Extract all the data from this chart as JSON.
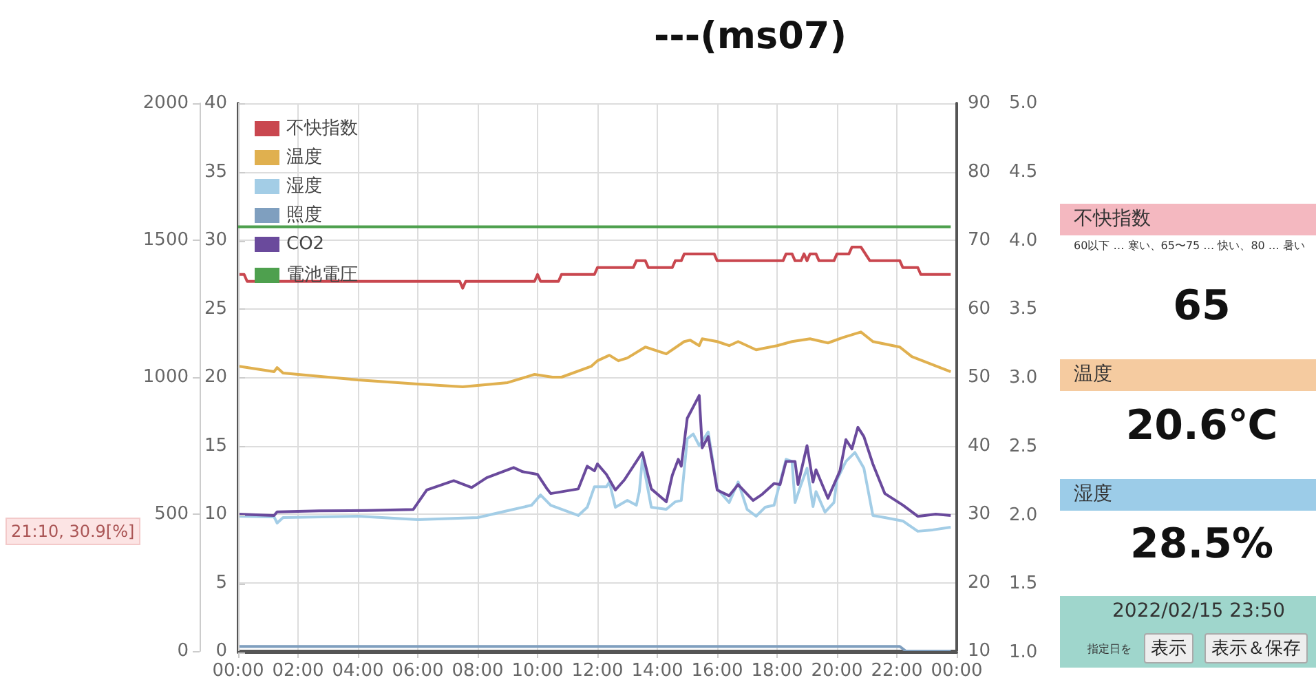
{
  "chart_data": [
    {
      "type": "line",
      "title": "---(ms07)",
      "xlim": [
        0,
        24
      ],
      "xticks": [
        {
          "value": 0,
          "label": "00:00"
        },
        {
          "value": 2,
          "label": "02:00"
        },
        {
          "value": 4,
          "label": "04:00"
        },
        {
          "value": 6,
          "label": "06:00"
        },
        {
          "value": 8,
          "label": "08:00"
        },
        {
          "value": 10,
          "label": "10:00"
        },
        {
          "value": 12,
          "label": "12:00"
        },
        {
          "value": 14,
          "label": "14:00"
        },
        {
          "value": 16,
          "label": "16:00"
        },
        {
          "value": 18,
          "label": "18:00"
        },
        {
          "value": 20,
          "label": "20:00"
        },
        {
          "value": 22,
          "label": "22:00"
        },
        {
          "value": 24,
          "label": "00:00"
        }
      ],
      "ylim": [
        0,
        40
      ],
      "yticks": [
        0,
        5,
        10,
        15,
        20,
        25,
        30,
        35,
        40
      ],
      "y2lim": [
        10,
        90
      ],
      "y2ticks": [
        10,
        20,
        30,
        40,
        50,
        60,
        70,
        80,
        90
      ],
      "y3lim": [
        0,
        2000
      ],
      "y3ticks": [
        0,
        500,
        1000,
        1500,
        2000
      ],
      "grid": true,
      "legend": "top left",
      "marker": "none",
      "line_style": "solid",
      "series": [
        {
          "name": "不快指数",
          "color": "#c9474f",
          "axis": "y2",
          "x": [
            0,
            0.2,
            0.3,
            7.4,
            7.5,
            7.6,
            9.9,
            10.0,
            10.1,
            10.7,
            10.8,
            11.9,
            12.0,
            13.2,
            13.3,
            13.6,
            13.7,
            14.5,
            14.6,
            14.8,
            14.9,
            15.9,
            16.0,
            18.2,
            18.3,
            18.5,
            18.6,
            18.8,
            18.9,
            19.0,
            19.1,
            19.3,
            19.4,
            19.9,
            20.0,
            20.4,
            20.5,
            20.8,
            21.1,
            22.1,
            22.2,
            22.7,
            22.8,
            23.8
          ],
          "values": [
            65,
            65,
            64,
            64,
            63,
            64,
            64,
            65,
            64,
            64,
            65,
            65,
            66,
            66,
            67,
            67,
            66,
            66,
            67,
            67,
            68,
            68,
            67,
            67,
            68,
            68,
            67,
            67,
            68,
            67,
            68,
            68,
            67,
            67,
            68,
            68,
            69,
            69,
            67,
            67,
            66,
            66,
            65,
            65
          ]
        },
        {
          "name": "温度",
          "color": "#e0b04f",
          "axis": "y",
          "x": [
            0,
            1.2,
            1.3,
            1.5,
            4.0,
            6.0,
            7.5,
            9.0,
            9.9,
            10.5,
            10.8,
            11.8,
            12.0,
            12.4,
            12.7,
            13.0,
            13.6,
            14.3,
            14.9,
            15.1,
            15.4,
            15.5,
            16.0,
            16.4,
            16.7,
            17.3,
            18.0,
            18.5,
            19.1,
            19.7,
            20.2,
            20.8,
            21.2,
            22.1,
            22.5,
            23.8
          ],
          "values": [
            20.8,
            20.4,
            20.7,
            20.3,
            19.8,
            19.5,
            19.3,
            19.6,
            20.2,
            20.0,
            20.0,
            20.8,
            21.2,
            21.6,
            21.2,
            21.4,
            22.2,
            21.7,
            22.6,
            22.7,
            22.3,
            22.8,
            22.6,
            22.3,
            22.6,
            22.0,
            22.3,
            22.6,
            22.8,
            22.5,
            22.9,
            23.3,
            22.6,
            22.2,
            21.5,
            20.4
          ]
        },
        {
          "name": "湿度",
          "color": "#a3cde6",
          "axis": "y2",
          "x": [
            0,
            1.2,
            1.3,
            1.5,
            4.0,
            6.0,
            8.0,
            9.0,
            9.8,
            10.1,
            10.44,
            11.36,
            11.66,
            11.9,
            12.3,
            12.4,
            12.6,
            13.0,
            13.3,
            13.4,
            13.5,
            13.8,
            14.3,
            14.6,
            14.8,
            15.0,
            15.2,
            15.4,
            15.7,
            16.0,
            16.4,
            16.7,
            17.0,
            17.3,
            17.6,
            17.9,
            18.3,
            18.5,
            18.6,
            18.8,
            19.0,
            19.2,
            19.3,
            19.6,
            19.9,
            20.0,
            20.3,
            20.6,
            20.9,
            21.2,
            21.6,
            22.2,
            22.7,
            23.2,
            23.8
          ],
          "values": [
            29.7,
            29.6,
            28.7,
            29.5,
            29.7,
            29.2,
            29.5,
            30.5,
            31.3,
            32.8,
            31.3,
            29.8,
            31.0,
            34.0,
            34.0,
            34.7,
            31.0,
            32.0,
            31.3,
            33.3,
            38.0,
            31.0,
            30.7,
            31.8,
            32.0,
            41.0,
            41.7,
            40.0,
            42.0,
            33.7,
            31.7,
            34.7,
            30.7,
            29.7,
            31.0,
            31.3,
            38.0,
            37.7,
            31.7,
            34.3,
            36.7,
            31.1,
            33.3,
            30.3,
            31.7,
            35.0,
            37.7,
            39.0,
            36.7,
            29.8,
            29.5,
            29.0,
            27.5,
            27.7,
            28.1
          ]
        },
        {
          "name": "照度",
          "color": "#7f9fbf",
          "axis": "y3",
          "x": [
            0,
            12,
            22.1,
            22.3,
            23.8
          ],
          "values": [
            17,
            17,
            17,
            0,
            0
          ]
        },
        {
          "name": "CO2",
          "color": "#6a4a9c",
          "axis": "y3",
          "x": [
            0,
            1.2,
            1.3,
            2.7,
            4.3,
            5.85,
            6.3,
            7.2,
            7.8,
            8.3,
            9.2,
            9.5,
            10.0,
            10.3,
            10.44,
            11.36,
            11.66,
            11.9,
            12.0,
            12.3,
            12.6,
            12.9,
            13.5,
            13.8,
            14.3,
            14.5,
            14.7,
            14.8,
            15.0,
            15.4,
            15.5,
            15.7,
            16.0,
            16.4,
            16.7,
            17.2,
            17.5,
            17.9,
            18.1,
            18.3,
            18.6,
            18.7,
            19.0,
            19.2,
            19.3,
            19.7,
            20.1,
            20.3,
            20.5,
            20.7,
            20.9,
            21.2,
            21.6,
            22.2,
            22.7,
            23.3,
            23.8
          ],
          "values": [
            500,
            495,
            508,
            512,
            513,
            517,
            588,
            622,
            597,
            633,
            670,
            655,
            645,
            595,
            575,
            592,
            675,
            658,
            683,
            645,
            588,
            625,
            725,
            592,
            545,
            642,
            700,
            675,
            850,
            933,
            742,
            783,
            588,
            567,
            608,
            550,
            572,
            612,
            608,
            692,
            692,
            608,
            750,
            617,
            662,
            558,
            658,
            772,
            738,
            817,
            783,
            683,
            575,
            533,
            492,
            500,
            495
          ]
        }
      ],
      "annotations": [
        "21:10, 30.9[%]",
        "不快指数",
        "60以下 … 寒い、65〜75 … 快い、80 … 暑い",
        "65",
        "温度",
        "20.6℃",
        "湿度",
        "28.5%",
        "2022/02/15 23:50",
        "指定日を",
        "表示",
        "表示＆保存"
      ]
    },
    {
      "type": "line",
      "xlim": [
        0,
        24
      ],
      "ylim": [
        1,
        5
      ],
      "yticks": [
        {
          "value": 1,
          "label": "1.0"
        },
        {
          "value": 1.5,
          "label": "1.5"
        },
        {
          "value": 2,
          "label": "2.0"
        },
        {
          "value": 2.5,
          "label": "2.5"
        },
        {
          "value": 3,
          "label": "3.0"
        },
        {
          "value": 3.5,
          "label": "3.5"
        },
        {
          "value": 4,
          "label": "4.0"
        },
        {
          "value": 4.5,
          "label": "4.5"
        },
        {
          "value": 5,
          "label": "5.0"
        }
      ],
      "tick_labels": "y",
      "legend": "top left",
      "marker": "none",
      "line_style": "solid",
      "series": [
        {
          "name": "電池電圧",
          "color": "#4ea04e",
          "x": [
            0,
            15,
            23.8
          ],
          "values": [
            4.1,
            4.1,
            4.1
          ]
        }
      ]
    }
  ]
}
